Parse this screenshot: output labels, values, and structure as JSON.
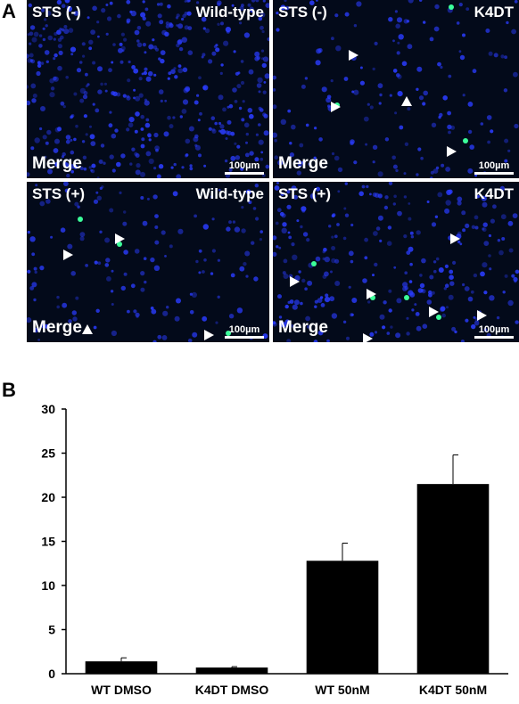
{
  "figure": {
    "panel_a_letter": "A",
    "panel_b_letter": "B"
  },
  "micrographs": [
    {
      "top_left": "STS (-)",
      "top_right": "Wild-type",
      "bottom_left": "Merge",
      "scale_bar": "100µm"
    },
    {
      "top_left": "STS (-)",
      "top_right": "K4DT",
      "bottom_left": "Merge",
      "scale_bar": "100µm"
    },
    {
      "top_left": "STS (+)",
      "top_right": "Wild-type",
      "bottom_left": "Merge",
      "scale_bar": "100µm"
    },
    {
      "top_left": "STS (+)",
      "top_right": "K4DT",
      "bottom_left": "Merge",
      "scale_bar": "100µm"
    }
  ],
  "colors": {
    "nuclei": "#2a3cff",
    "tunel": "#3cff9a",
    "background": "#030a1a",
    "bar": "#000000"
  },
  "chart_data": {
    "type": "bar",
    "title": "",
    "xlabel": "",
    "ylabel": "",
    "categories": [
      "WT DMSO",
      "K4DT DMSO",
      "WT 50nM",
      "K4DT 50nM"
    ],
    "values": [
      1.4,
      0.7,
      12.8,
      21.5
    ],
    "errors": [
      0.4,
      0.1,
      2.0,
      3.3
    ],
    "ylim": [
      0,
      30
    ],
    "yticks": [
      0,
      5,
      10,
      15,
      20,
      25,
      30
    ],
    "grid": false
  }
}
